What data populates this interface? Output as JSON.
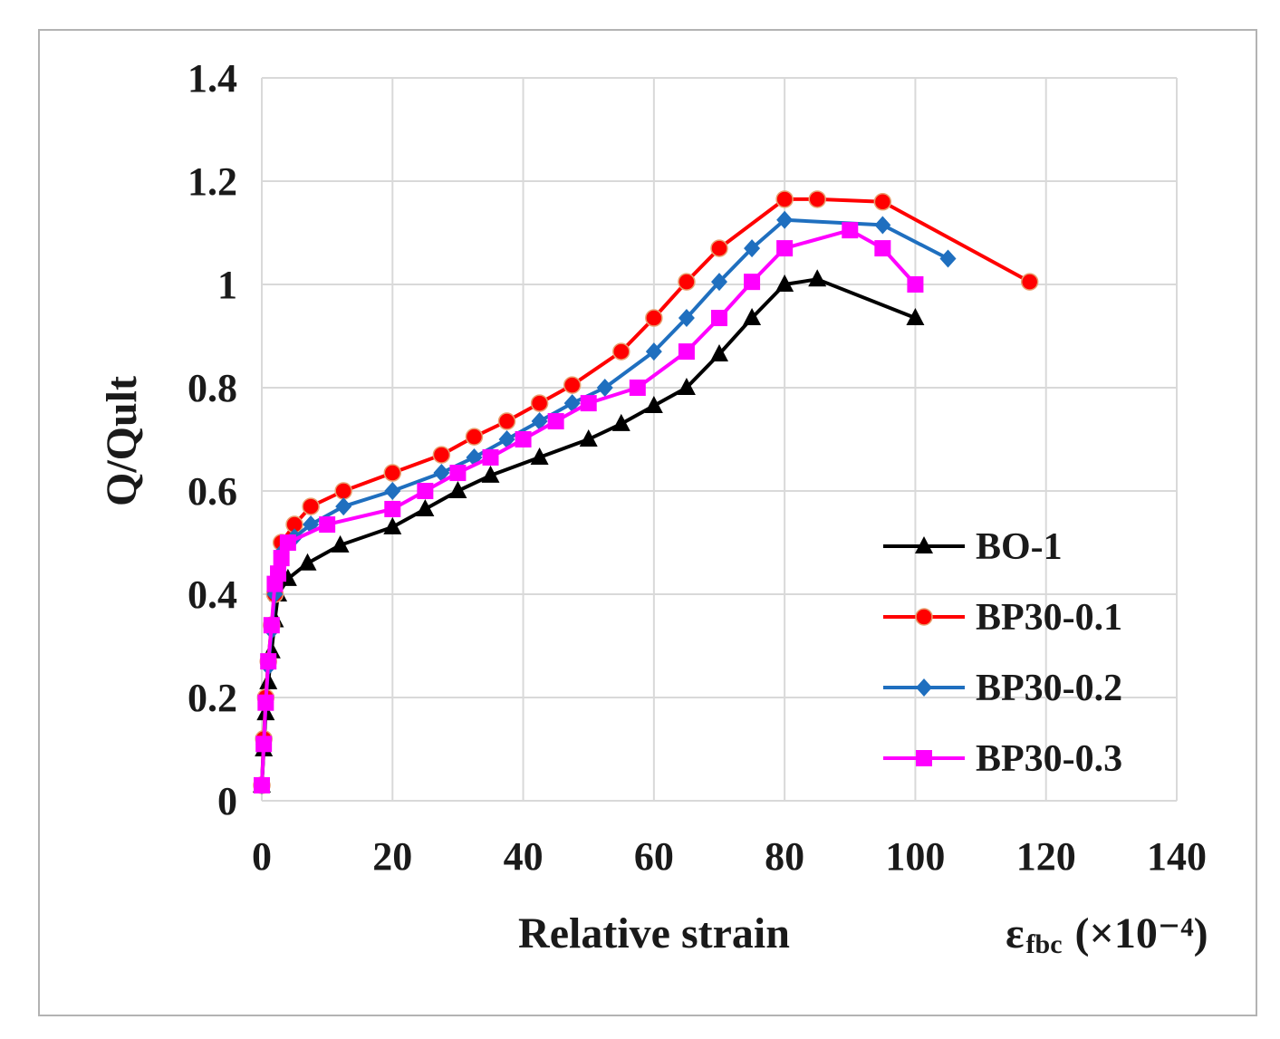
{
  "chart_data": {
    "type": "line",
    "title": "",
    "xlabel": "Relative strain",
    "xlabel_unit_symbol": "ε",
    "xlabel_unit_subscript": "fbc",
    "xlabel_unit_scale": "(×10⁻⁴)",
    "ylabel": "Q/Qult",
    "xlim": [
      0,
      140
    ],
    "ylim": [
      0,
      1.4
    ],
    "x_ticks": [
      "0",
      "20",
      "40",
      "60",
      "80",
      "100",
      "120",
      "140"
    ],
    "y_ticks": [
      "0",
      "0.2",
      "0.4",
      "0.6",
      "0.8",
      "1",
      "1.2",
      "1.4"
    ],
    "grid": true,
    "legend_position": "lower-right",
    "series": [
      {
        "name": "BO-1",
        "color": "#000000",
        "marker": "triangle",
        "points": [
          [
            0,
            0.03
          ],
          [
            0.3,
            0.1
          ],
          [
            0.6,
            0.17
          ],
          [
            1,
            0.23
          ],
          [
            1.5,
            0.29
          ],
          [
            2,
            0.35
          ],
          [
            2.5,
            0.4
          ],
          [
            4,
            0.43
          ],
          [
            7,
            0.46
          ],
          [
            12,
            0.495
          ],
          [
            20,
            0.53
          ],
          [
            25,
            0.565
          ],
          [
            30,
            0.6
          ],
          [
            35,
            0.63
          ],
          [
            42.5,
            0.665
          ],
          [
            50,
            0.7
          ],
          [
            55,
            0.73
          ],
          [
            60,
            0.765
          ],
          [
            65,
            0.8
          ],
          [
            70,
            0.865
          ],
          [
            75,
            0.935
          ],
          [
            80,
            1.0
          ],
          [
            85,
            1.01
          ],
          [
            100,
            0.935
          ]
        ]
      },
      {
        "name": "BP30-0.1",
        "color": "#ff0000",
        "marker": "circle",
        "points": [
          [
            0,
            0.03
          ],
          [
            0.3,
            0.12
          ],
          [
            0.6,
            0.2
          ],
          [
            1,
            0.27
          ],
          [
            1.5,
            0.34
          ],
          [
            2,
            0.4
          ],
          [
            3,
            0.5
          ],
          [
            5,
            0.535
          ],
          [
            7.5,
            0.57
          ],
          [
            12.5,
            0.6
          ],
          [
            20,
            0.635
          ],
          [
            27.5,
            0.67
          ],
          [
            32.5,
            0.705
          ],
          [
            37.5,
            0.735
          ],
          [
            42.5,
            0.77
          ],
          [
            47.5,
            0.805
          ],
          [
            55,
            0.87
          ],
          [
            60,
            0.935
          ],
          [
            65,
            1.005
          ],
          [
            70,
            1.07
          ],
          [
            80,
            1.165
          ],
          [
            85,
            1.165
          ],
          [
            95,
            1.16
          ],
          [
            117.5,
            1.005
          ]
        ]
      },
      {
        "name": "BP30-0.2",
        "color": "#1f6fbf",
        "marker": "diamond",
        "points": [
          [
            0,
            0.03
          ],
          [
            0.3,
            0.11
          ],
          [
            0.6,
            0.19
          ],
          [
            1,
            0.26
          ],
          [
            1.5,
            0.33
          ],
          [
            2,
            0.4
          ],
          [
            3,
            0.48
          ],
          [
            5,
            0.51
          ],
          [
            7.5,
            0.535
          ],
          [
            12.5,
            0.57
          ],
          [
            20,
            0.6
          ],
          [
            27.5,
            0.635
          ],
          [
            32.5,
            0.665
          ],
          [
            37.5,
            0.7
          ],
          [
            42.5,
            0.735
          ],
          [
            47.5,
            0.77
          ],
          [
            52.5,
            0.8
          ],
          [
            60,
            0.87
          ],
          [
            65,
            0.935
          ],
          [
            70,
            1.005
          ],
          [
            75,
            1.07
          ],
          [
            80,
            1.125
          ],
          [
            95,
            1.115
          ],
          [
            105,
            1.05
          ]
        ]
      },
      {
        "name": "BP30-0.3",
        "color": "#ff00ff",
        "marker": "square",
        "points": [
          [
            0,
            0.03
          ],
          [
            0.3,
            0.11
          ],
          [
            0.6,
            0.19
          ],
          [
            1,
            0.27
          ],
          [
            1.5,
            0.34
          ],
          [
            2,
            0.42
          ],
          [
            2.5,
            0.44
          ],
          [
            3,
            0.47
          ],
          [
            4,
            0.5
          ],
          [
            10,
            0.535
          ],
          [
            20,
            0.565
          ],
          [
            25,
            0.6
          ],
          [
            30,
            0.635
          ],
          [
            35,
            0.665
          ],
          [
            40,
            0.7
          ],
          [
            45,
            0.735
          ],
          [
            50,
            0.77
          ],
          [
            57.5,
            0.8
          ],
          [
            65,
            0.87
          ],
          [
            70,
            0.935
          ],
          [
            75,
            1.005
          ],
          [
            80,
            1.07
          ],
          [
            90,
            1.105
          ],
          [
            95,
            1.07
          ],
          [
            100,
            1.0
          ]
        ]
      }
    ]
  }
}
